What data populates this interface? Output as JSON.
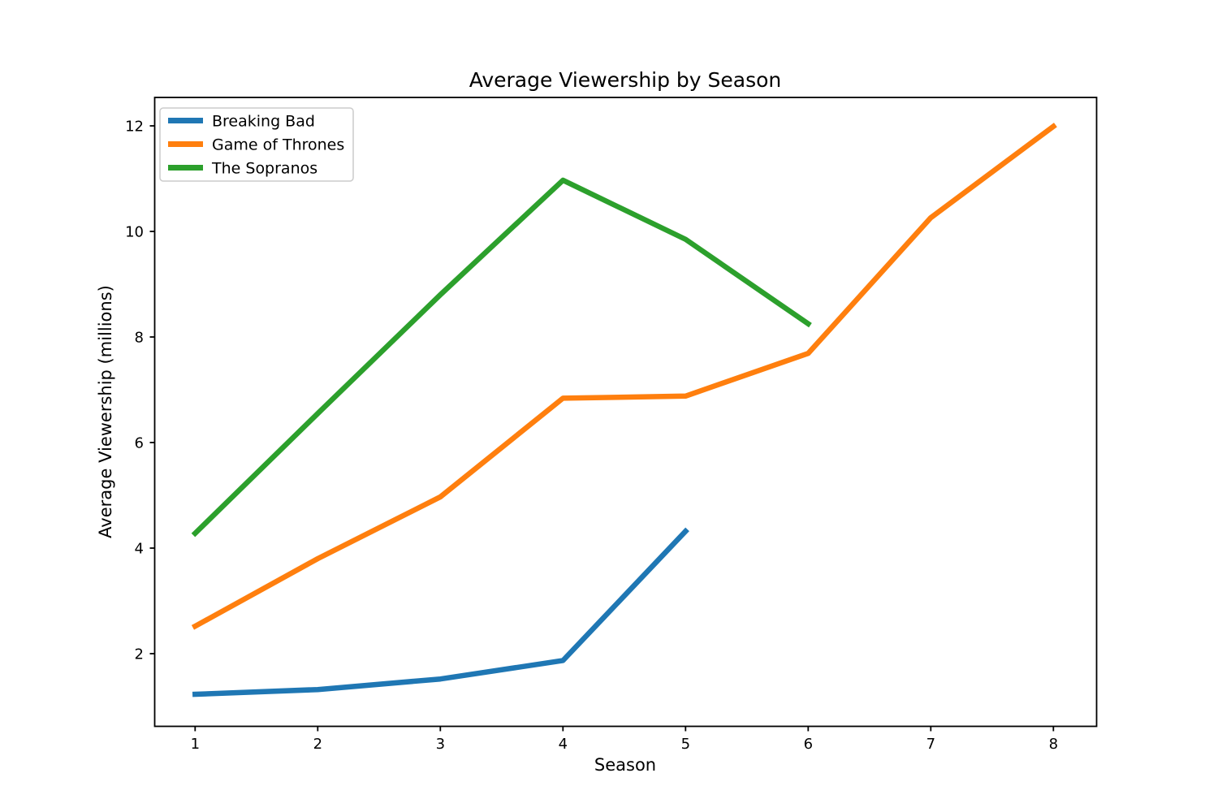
{
  "chart_data": {
    "type": "line",
    "title": "Average Viewership by Season",
    "xlabel": "Season",
    "ylabel": "Average Viewership (millions)",
    "x_ticks": [
      1,
      2,
      3,
      4,
      5,
      6,
      7,
      8
    ],
    "y_ticks": [
      2,
      4,
      6,
      8,
      10,
      12
    ],
    "xlim": [
      0.67,
      8.36
    ],
    "ylim": [
      0.62,
      12.54
    ],
    "grid": false,
    "legend_position": "upper left",
    "series": [
      {
        "name": "Breaking Bad",
        "color": "#1f77b4",
        "x": [
          1,
          2,
          3,
          4,
          5
        ],
        "values": [
          1.23,
          1.32,
          1.52,
          1.87,
          4.32
        ]
      },
      {
        "name": "Game of Thrones",
        "color": "#ff7f0e",
        "x": [
          1,
          2,
          3,
          4,
          5,
          6,
          7,
          8
        ],
        "values": [
          2.52,
          3.8,
          4.97,
          6.84,
          6.88,
          7.69,
          10.26,
          11.99
        ]
      },
      {
        "name": "The Sopranos",
        "color": "#2ca02c",
        "x": [
          1,
          2,
          3,
          4,
          5,
          6
        ],
        "values": [
          4.28,
          6.55,
          8.8,
          10.97,
          9.85,
          8.25
        ]
      }
    ]
  }
}
